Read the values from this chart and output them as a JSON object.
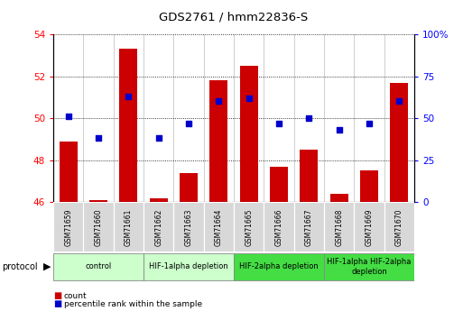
{
  "title": "GDS2761 / hmm22836-S",
  "samples": [
    "GSM71659",
    "GSM71660",
    "GSM71661",
    "GSM71662",
    "GSM71663",
    "GSM71664",
    "GSM71665",
    "GSM71666",
    "GSM71667",
    "GSM71668",
    "GSM71669",
    "GSM71670"
  ],
  "bar_values": [
    48.9,
    46.1,
    53.3,
    46.2,
    47.4,
    51.8,
    52.5,
    47.7,
    48.5,
    46.4,
    47.5,
    51.7
  ],
  "dot_values_pct": [
    51,
    38,
    63,
    38,
    47,
    60,
    62,
    47,
    50,
    43,
    47,
    60
  ],
  "ylim_left": [
    46,
    54
  ],
  "yticks_left": [
    46,
    48,
    50,
    52,
    54
  ],
  "ylim_right": [
    0,
    100
  ],
  "yticks_right": [
    0,
    25,
    50,
    75,
    100
  ],
  "bar_color": "#cc0000",
  "dot_color": "#0000cc",
  "bar_bottom": 46,
  "protocol_groups": [
    {
      "label": "control",
      "start": 0,
      "end": 2,
      "color": "#ccffcc"
    },
    {
      "label": "HIF-1alpha depletion",
      "start": 3,
      "end": 5,
      "color": "#ccffcc"
    },
    {
      "label": "HIF-2alpha depletion",
      "start": 6,
      "end": 8,
      "color": "#44dd44"
    },
    {
      "label": "HIF-1alpha HIF-2alpha\ndepletion",
      "start": 9,
      "end": 11,
      "color": "#44dd44"
    }
  ],
  "legend_items": [
    {
      "label": "count",
      "color": "#cc0000"
    },
    {
      "label": "percentile rank within the sample",
      "color": "#0000cc"
    }
  ]
}
